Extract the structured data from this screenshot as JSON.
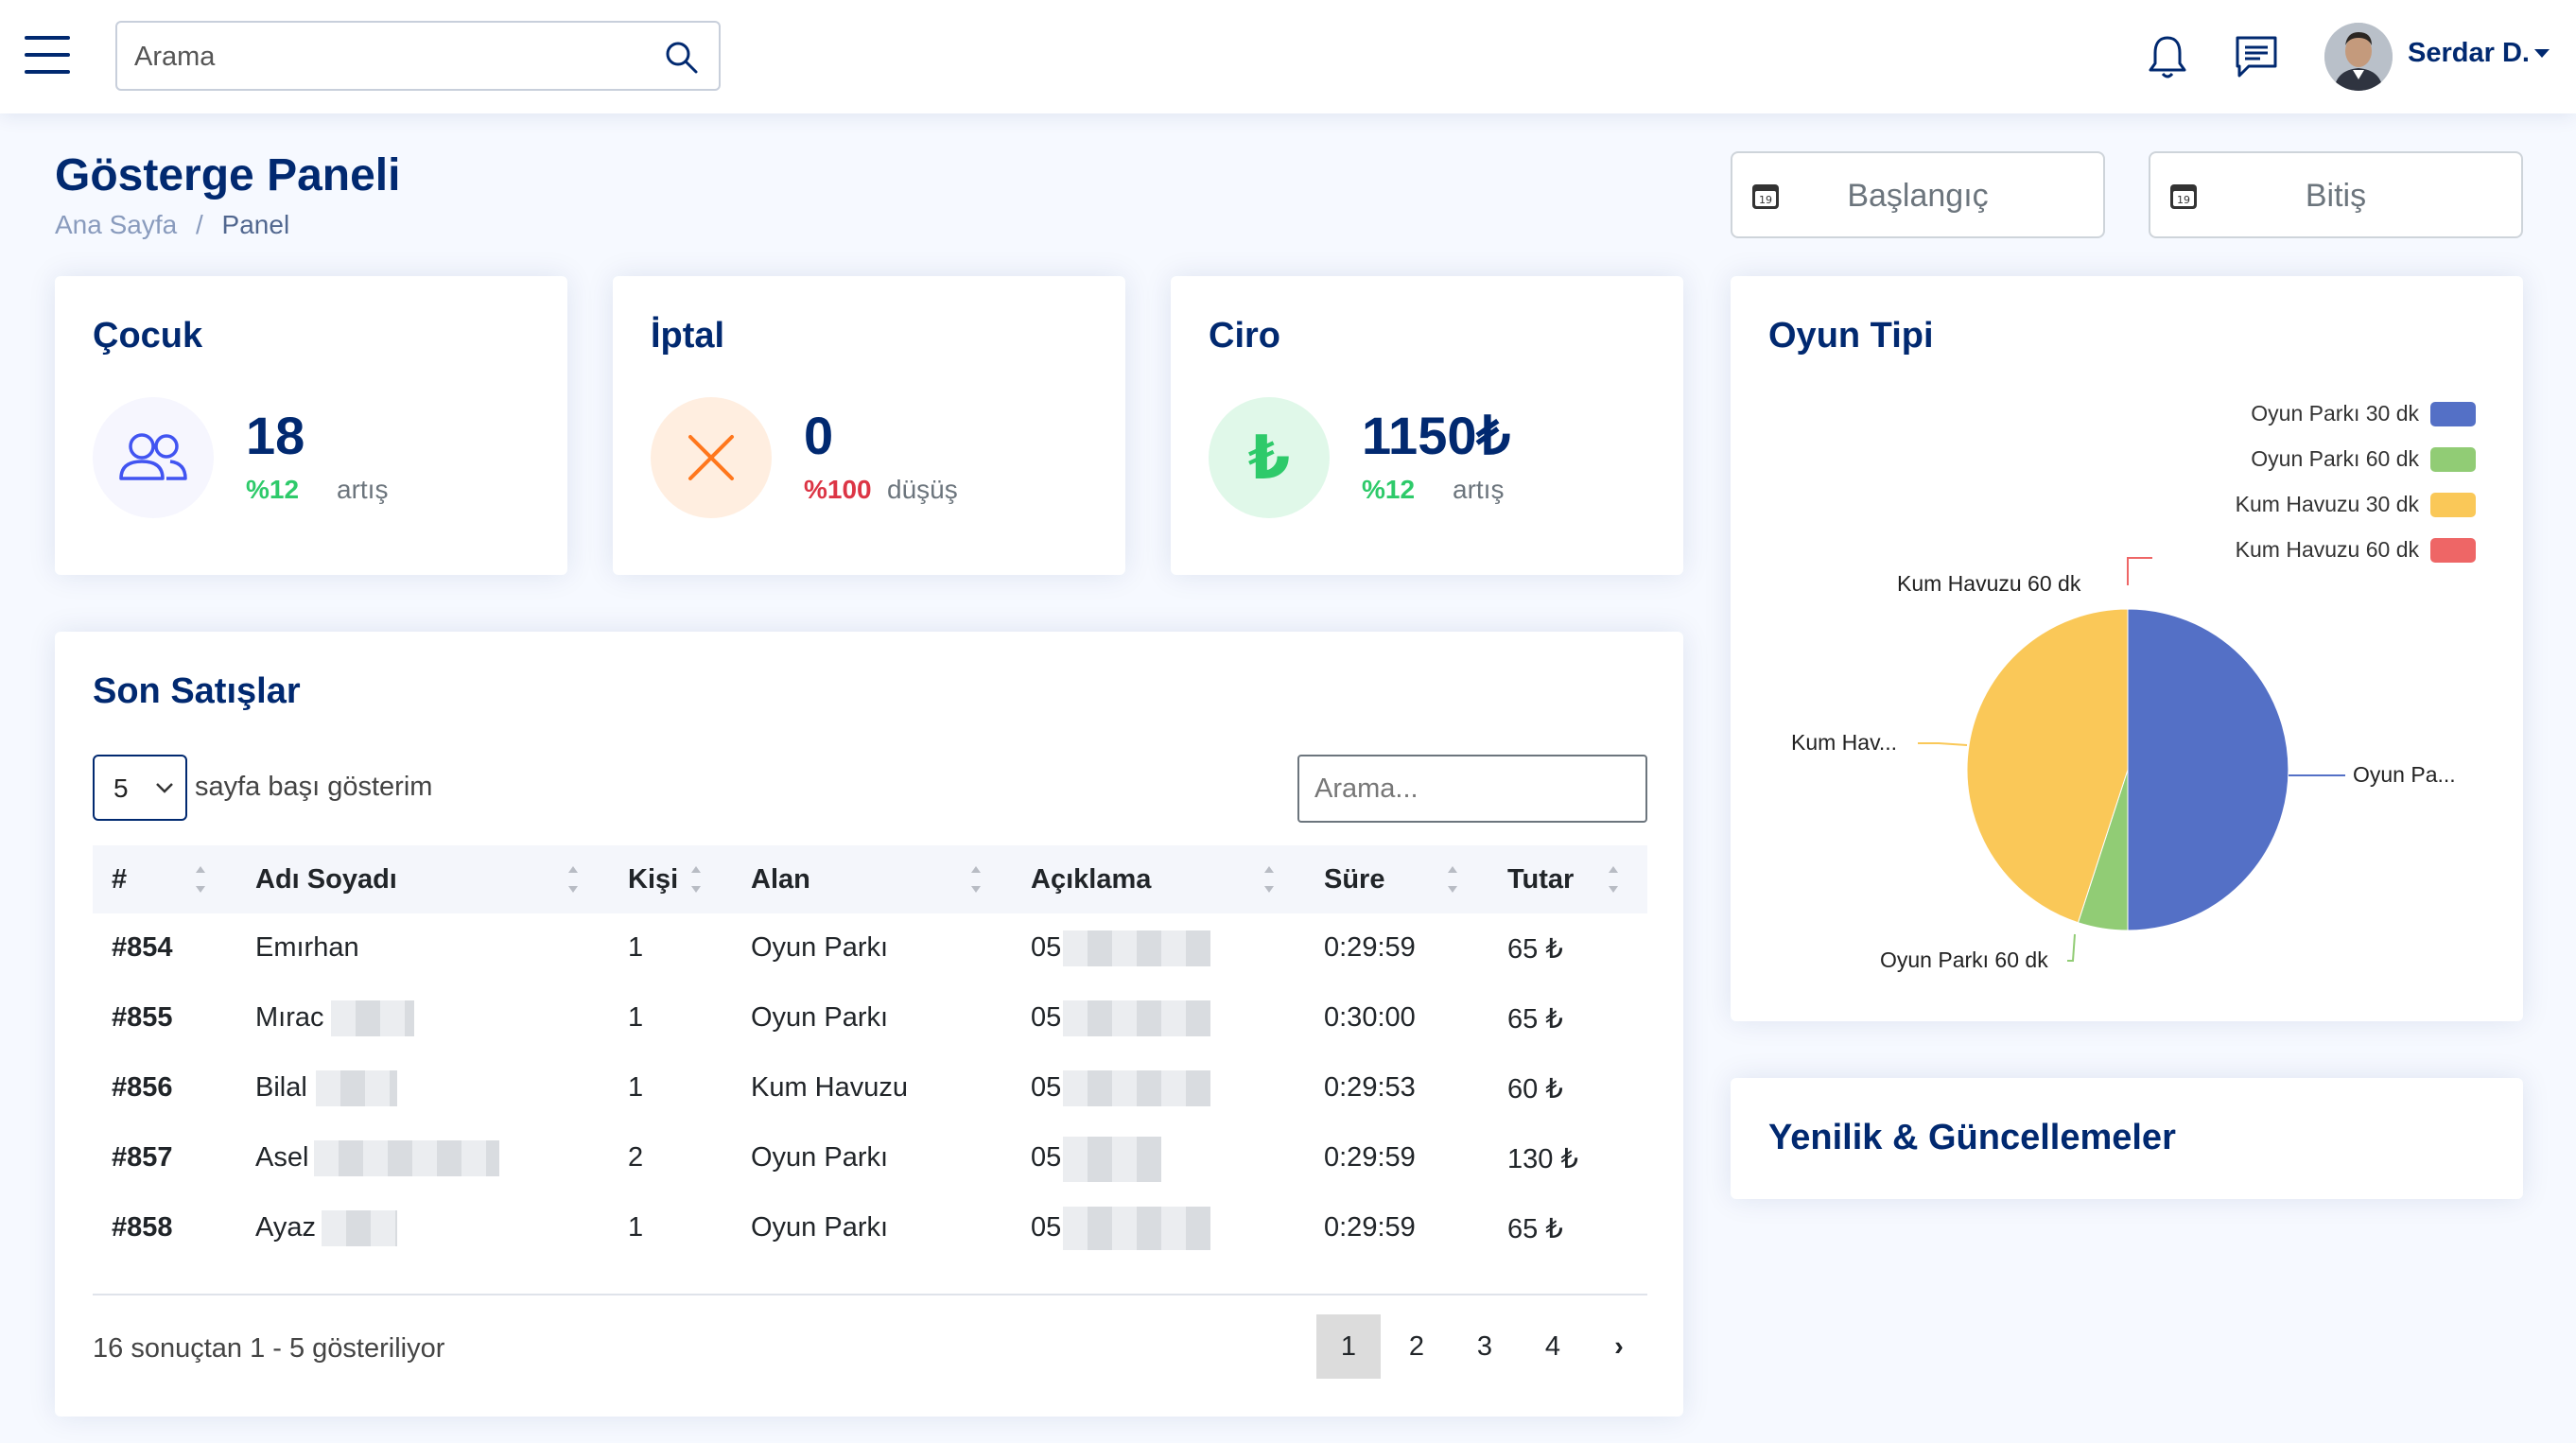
{
  "header": {
    "search_placeholder": "Arama",
    "user_name": "Serdar D."
  },
  "page": {
    "title": "Gösterge Paneli",
    "breadcrumb_home": "Ana Sayfa",
    "breadcrumb_sep": "/",
    "breadcrumb_current": "Panel"
  },
  "date_filters": {
    "start": "Başlangıç",
    "end": "Bitiş",
    "calendar_day": "19"
  },
  "stats": [
    {
      "title": "Çocuk",
      "value": "18",
      "percent": "%12",
      "trend": "artış",
      "icon": "people-icon",
      "color": "#2eca6a"
    },
    {
      "title": "İptal",
      "value": "0",
      "percent": "%100",
      "trend": "düşüş",
      "icon": "x-icon",
      "color": "#dc3545"
    },
    {
      "title": "Ciro",
      "value": "1150₺",
      "percent": "%12",
      "trend": "artış",
      "icon": "lira-icon",
      "color": "#2eca6a"
    }
  ],
  "sales": {
    "title": "Son Satışlar",
    "page_size": "5",
    "page_size_label": "sayfa başı gösterim",
    "search_placeholder": "Arama...",
    "columns": [
      "#",
      "Adı Soyadı",
      "Kişi",
      "Alan",
      "Açıklama",
      "Süre",
      "Tutar"
    ],
    "rows": [
      {
        "id": "#854",
        "name": "Emırhan",
        "count": "1",
        "area": "Oyun Parkı",
        "desc": "05",
        "duration": "0:29:59",
        "amount": "65 ₺"
      },
      {
        "id": "#855",
        "name": "Mırac",
        "count": "1",
        "area": "Oyun Parkı",
        "desc": "05",
        "duration": "0:30:00",
        "amount": "65 ₺"
      },
      {
        "id": "#856",
        "name": "Bilal",
        "count": "1",
        "area": "Kum Havuzu",
        "desc": "05",
        "duration": "0:29:53",
        "amount": "60 ₺"
      },
      {
        "id": "#857",
        "name": "Asel",
        "count": "2",
        "area": "Oyun Parkı",
        "desc": "05",
        "duration": "0:29:59",
        "amount": "130 ₺"
      },
      {
        "id": "#858",
        "name": "Ayaz",
        "count": "1",
        "area": "Oyun Parkı",
        "desc": "05",
        "duration": "0:29:59",
        "amount": "65 ₺"
      }
    ],
    "info": "16 sonuçtan 1 - 5 gösteriliyor",
    "pages": [
      "1",
      "2",
      "3",
      "4"
    ],
    "next": "›",
    "current_page": "1"
  },
  "game_type": {
    "title": "Oyun Tipi",
    "pie_labels": {
      "top": "Kum Havuzu 60 dk",
      "left": "Kum Hav...",
      "right": "Oyun Pa...",
      "bottom": "Oyun Parkı 60 dk"
    }
  },
  "chart_data": {
    "type": "pie",
    "title": "Oyun Tipi",
    "categories": [
      "Oyun Parkı 30 dk",
      "Oyun Parkı 60 dk",
      "Kum Havuzu 30 dk",
      "Kum Havuzu 60 dk"
    ],
    "values": [
      50,
      5,
      45,
      0
    ],
    "colors": [
      "#5470c6",
      "#91cc75",
      "#fac858",
      "#ee6666"
    ],
    "legend": "top-right"
  },
  "news": {
    "title": "Yenilik & Güncellemeler"
  }
}
